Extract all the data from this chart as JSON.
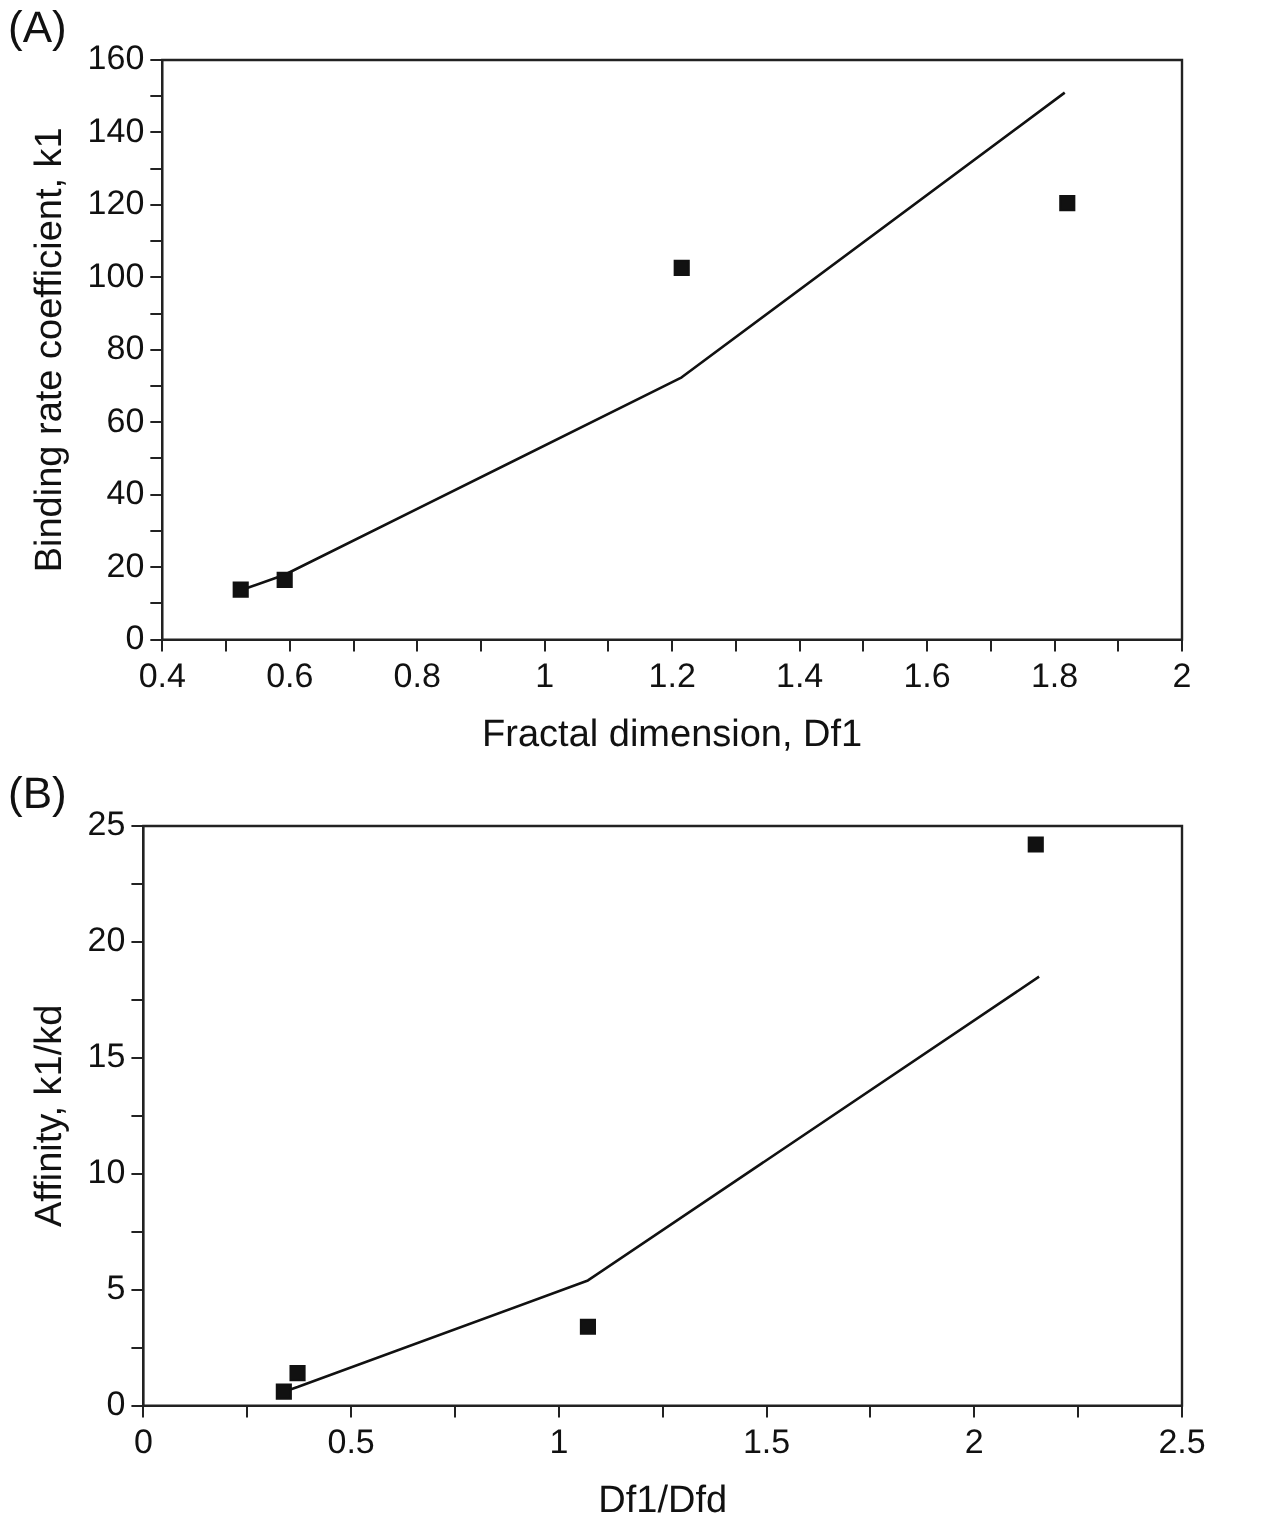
{
  "chart_data": [
    {
      "type": "scatter",
      "title": "(A)",
      "xlabel": "Fractal dimension, Df1",
      "ylabel": "Binding rate coefficient, k1",
      "xlim": [
        0.4,
        2
      ],
      "xticks": [
        0.4,
        {
          "value": 0.5,
          "label": null
        },
        0.6,
        {
          "value": 0.7,
          "label": null
        },
        0.8,
        {
          "value": 0.9,
          "label": null
        },
        1,
        {
          "value": 1.1,
          "label": null
        },
        1.2,
        {
          "value": 1.3,
          "label": null
        },
        1.4,
        {
          "value": 1.5,
          "label": null
        },
        1.6,
        {
          "value": 1.7,
          "label": null
        },
        1.8,
        {
          "value": 1.9,
          "label": null
        },
        2
      ],
      "ylim": [
        0,
        160
      ],
      "yticks": [
        0,
        {
          "value": 10,
          "label": null
        },
        20,
        {
          "value": 30,
          "label": null
        },
        40,
        {
          "value": 50,
          "label": null
        },
        60,
        {
          "value": 70,
          "label": null
        },
        80,
        {
          "value": 90,
          "label": null
        },
        100,
        {
          "value": 110,
          "label": null
        },
        120,
        {
          "value": 130,
          "label": null
        },
        140,
        {
          "value": 150,
          "label": null
        },
        160
      ],
      "series": [
        {
          "color": "#111111",
          "marker": "square",
          "x": [
            0.523,
            0.592,
            1.215,
            1.82
          ],
          "values": [
            13.8,
            16.5,
            102.6,
            120.5
          ]
        },
        {
          "type": "line",
          "color": "#111111",
          "marker": "none",
          "x": [
            0.523,
            0.592,
            1.215,
            1.816
          ],
          "values": [
            13.6,
            17.9,
            72.4,
            151
          ]
        }
      ]
    },
    {
      "type": "scatter",
      "title": "(B)",
      "xlabel": "Df1/Dfd",
      "ylabel": "Affinity, k1/kd",
      "xlim": [
        0,
        2.5
      ],
      "xticks": [
        0,
        {
          "value": 0.25,
          "label": null
        },
        0.5,
        {
          "value": 0.75,
          "label": null
        },
        1,
        {
          "value": 1.25,
          "label": null
        },
        1.5,
        {
          "value": 1.75,
          "label": null
        },
        2,
        {
          "value": 2.25,
          "label": null
        },
        2.5
      ],
      "ylim": [
        0,
        25
      ],
      "yticks": [
        0,
        {
          "value": 2.5,
          "label": null
        },
        5,
        {
          "value": 7.5,
          "label": null
        },
        10,
        {
          "value": 12.5,
          "label": null
        },
        15,
        {
          "value": 17.5,
          "label": null
        },
        20,
        {
          "value": 22.5,
          "label": null
        },
        25
      ],
      "series": [
        {
          "color": "#111111",
          "marker": "square",
          "x": [
            0.338,
            0.371,
            1.07,
            2.148
          ],
          "values": [
            0.6,
            1.4,
            3.4,
            24.2
          ]
        },
        {
          "type": "line",
          "color": "#111111",
          "marker": "none",
          "x": [
            0.338,
            0.371,
            1.07,
            2.156
          ],
          "values": [
            0.6,
            0.8,
            5.4,
            18.5
          ]
        }
      ]
    }
  ]
}
